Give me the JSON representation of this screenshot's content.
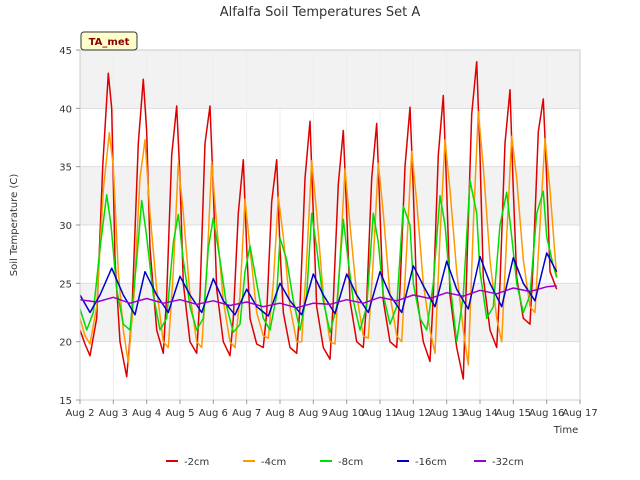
{
  "chart_data": {
    "type": "line",
    "title": "Alfalfa Soil Temperatures Set A",
    "xlabel": "Time",
    "ylabel": "Soil Temperature (C)",
    "badge": "TA_met",
    "ylim": [
      15,
      45
    ],
    "yticks": [
      15,
      20,
      25,
      30,
      35,
      40,
      45
    ],
    "xlim": [
      0,
      15
    ],
    "xticks": [
      {
        "x": 0,
        "label": "Aug 2"
      },
      {
        "x": 1,
        "label": "Aug 3"
      },
      {
        "x": 2,
        "label": "Aug 4"
      },
      {
        "x": 3,
        "label": "Aug 5"
      },
      {
        "x": 4,
        "label": "Aug 6"
      },
      {
        "x": 5,
        "label": "Aug 7"
      },
      {
        "x": 6,
        "label": "Aug 8"
      },
      {
        "x": 7,
        "label": "Aug 9"
      },
      {
        "x": 8,
        "label": "Aug 10"
      },
      {
        "x": 9,
        "label": "Aug 11"
      },
      {
        "x": 10,
        "label": "Aug 12"
      },
      {
        "x": 11,
        "label": "Aug 13"
      },
      {
        "x": 12,
        "label": "Aug 14"
      },
      {
        "x": 13,
        "label": "Aug 15"
      },
      {
        "x": 14,
        "label": "Aug 16"
      },
      {
        "x": 15,
        "label": "Aug 17"
      }
    ],
    "grid": true,
    "legend": "bottom",
    "series": [
      {
        "name": "-2cm",
        "color": "#dd0000",
        "x": [
          0.0,
          0.15,
          0.3,
          0.5,
          0.68,
          0.85,
          0.95,
          1.05,
          1.2,
          1.4,
          1.55,
          1.75,
          1.9,
          2.0,
          2.1,
          2.3,
          2.5,
          2.6,
          2.75,
          2.9,
          3.0,
          3.1,
          3.3,
          3.5,
          3.6,
          3.75,
          3.9,
          4.0,
          4.1,
          4.3,
          4.5,
          4.6,
          4.75,
          4.9,
          5.0,
          5.1,
          5.3,
          5.5,
          5.6,
          5.75,
          5.9,
          6.0,
          6.1,
          6.3,
          6.5,
          6.6,
          6.75,
          6.9,
          7.0,
          7.1,
          7.3,
          7.5,
          7.6,
          7.75,
          7.9,
          8.0,
          8.1,
          8.3,
          8.5,
          8.6,
          8.75,
          8.9,
          9.0,
          9.1,
          9.3,
          9.5,
          9.6,
          9.75,
          9.9,
          10.0,
          10.1,
          10.3,
          10.5,
          10.6,
          10.75,
          10.9,
          11.0,
          11.1,
          11.3,
          11.5,
          11.6,
          11.75,
          11.9,
          12.0,
          12.1,
          12.3,
          12.5,
          12.6,
          12.75,
          12.9,
          13.0,
          13.1,
          13.3,
          13.5,
          13.6,
          13.75,
          13.9,
          14.0,
          14.1,
          14.3
        ],
        "y": [
          21.0,
          19.8,
          18.8,
          22.0,
          35.0,
          43.0,
          40.0,
          27.0,
          20.0,
          17.0,
          22.0,
          37.0,
          42.5,
          38.0,
          28.0,
          21.0,
          19.0,
          24.0,
          36.0,
          40.2,
          34.0,
          25.0,
          20.0,
          19.0,
          24.0,
          37.0,
          40.2,
          33.0,
          24.5,
          20.0,
          18.8,
          22.0,
          31.0,
          35.6,
          28.0,
          22.0,
          19.8,
          19.5,
          22.5,
          32.0,
          35.6,
          28.0,
          22.5,
          19.5,
          19.0,
          23.0,
          34.0,
          38.9,
          31.0,
          23.0,
          19.5,
          18.5,
          23.5,
          33.5,
          38.1,
          31.0,
          23.5,
          20.0,
          19.5,
          23.5,
          34.0,
          38.7,
          31.0,
          23.5,
          20.0,
          19.5,
          24.5,
          35.0,
          40.1,
          33.0,
          24.0,
          20.0,
          18.3,
          24.0,
          36.0,
          41.1,
          33.0,
          24.0,
          19.5,
          16.8,
          26.0,
          39.5,
          44.0,
          36.0,
          25.5,
          21.0,
          19.5,
          25.0,
          37.0,
          41.6,
          33.0,
          25.5,
          22.0,
          21.5,
          27.0,
          38.0,
          40.8,
          34.0,
          26.0,
          24.5
        ]
      },
      {
        "name": "-4cm",
        "color": "#ff9900",
        "x": [
          0.0,
          0.15,
          0.3,
          0.5,
          0.7,
          0.88,
          1.0,
          1.15,
          1.3,
          1.45,
          1.62,
          1.8,
          1.95,
          2.1,
          2.3,
          2.5,
          2.65,
          2.8,
          2.95,
          3.1,
          3.3,
          3.5,
          3.65,
          3.8,
          3.95,
          4.1,
          4.3,
          4.5,
          4.65,
          4.8,
          4.95,
          5.1,
          5.3,
          5.5,
          5.65,
          5.8,
          5.95,
          6.1,
          6.3,
          6.5,
          6.65,
          6.8,
          6.95,
          7.1,
          7.3,
          7.5,
          7.65,
          7.8,
          7.95,
          8.1,
          8.3,
          8.5,
          8.65,
          8.8,
          8.95,
          9.1,
          9.3,
          9.5,
          9.65,
          9.8,
          9.95,
          10.1,
          10.3,
          10.5,
          10.65,
          10.8,
          10.95,
          11.1,
          11.3,
          11.5,
          11.65,
          11.8,
          11.95,
          12.1,
          12.3,
          12.5,
          12.65,
          12.8,
          12.95,
          13.1,
          13.3,
          13.5,
          13.65,
          13.8,
          13.95,
          14.1,
          14.3
        ],
        "y": [
          22.0,
          20.5,
          19.8,
          23.0,
          33.0,
          37.9,
          35.0,
          26.0,
          21.0,
          18.2,
          24.0,
          34.0,
          37.3,
          31.0,
          24.5,
          20.0,
          19.5,
          26.0,
          35.3,
          31.0,
          24.0,
          20.0,
          19.5,
          26.0,
          35.4,
          30.0,
          23.5,
          20.0,
          19.5,
          24.0,
          32.2,
          28.0,
          22.5,
          20.5,
          20.3,
          25.0,
          32.4,
          29.0,
          23.0,
          20.0,
          20.0,
          27.0,
          35.5,
          31.0,
          24.0,
          20.0,
          19.8,
          27.0,
          34.8,
          30.0,
          24.0,
          20.5,
          20.3,
          27.0,
          35.3,
          31.0,
          24.0,
          20.5,
          20.0,
          28.0,
          36.3,
          32.0,
          25.0,
          21.0,
          19.0,
          29.0,
          37.3,
          33.0,
          26.0,
          21.0,
          18.0,
          30.0,
          39.7,
          35.0,
          27.0,
          22.0,
          20.0,
          29.0,
          37.6,
          34.0,
          27.0,
          23.0,
          22.5,
          30.0,
          37.4,
          33.0,
          25.5
        ]
      },
      {
        "name": "-8cm",
        "color": "#00dd00",
        "x": [
          0.0,
          0.2,
          0.4,
          0.6,
          0.8,
          0.93,
          1.1,
          1.3,
          1.5,
          1.7,
          1.85,
          2.0,
          2.2,
          2.4,
          2.6,
          2.8,
          2.95,
          3.1,
          3.3,
          3.5,
          3.7,
          3.85,
          4.0,
          4.2,
          4.4,
          4.6,
          4.8,
          4.95,
          5.1,
          5.3,
          5.5,
          5.7,
          5.9,
          6.0,
          6.2,
          6.4,
          6.6,
          6.8,
          6.95,
          7.1,
          7.3,
          7.5,
          7.7,
          7.9,
          8.0,
          8.2,
          8.4,
          8.6,
          8.8,
          8.95,
          9.1,
          9.3,
          9.5,
          9.7,
          9.9,
          10.0,
          10.2,
          10.4,
          10.6,
          10.8,
          10.95,
          11.1,
          11.3,
          11.5,
          11.7,
          11.9,
          12.0,
          12.2,
          12.4,
          12.6,
          12.8,
          12.95,
          13.1,
          13.3,
          13.5,
          13.7,
          13.9,
          14.0,
          14.2,
          14.3
        ],
        "y": [
          22.8,
          21.0,
          22.5,
          28.0,
          32.6,
          30.0,
          24.5,
          21.5,
          21.0,
          27.0,
          32.1,
          29.0,
          24.0,
          21.0,
          22.0,
          28.5,
          30.9,
          27.0,
          23.0,
          21.0,
          22.0,
          28.0,
          30.6,
          27.0,
          23.0,
          20.8,
          21.5,
          26.0,
          28.2,
          25.0,
          22.0,
          21.0,
          24.0,
          28.9,
          27.0,
          23.5,
          21.0,
          24.0,
          31.0,
          28.0,
          23.5,
          20.8,
          23.0,
          30.5,
          28.0,
          23.5,
          21.0,
          23.0,
          31.0,
          28.5,
          24.0,
          21.5,
          23.0,
          31.6,
          30.0,
          25.0,
          22.0,
          21.0,
          25.0,
          32.5,
          30.0,
          25.0,
          20.0,
          24.0,
          33.8,
          31.0,
          26.0,
          22.0,
          23.0,
          30.0,
          32.8,
          29.0,
          25.0,
          22.5,
          24.0,
          31.0,
          32.9,
          29.0,
          26.5,
          25.5
        ]
      },
      {
        "name": "-16cm",
        "color": "#0000cc",
        "x": [
          0.0,
          0.3,
          0.6,
          0.95,
          1.3,
          1.65,
          1.95,
          2.3,
          2.65,
          3.0,
          3.3,
          3.65,
          4.0,
          4.3,
          4.65,
          5.0,
          5.3,
          5.65,
          6.0,
          6.3,
          6.65,
          7.0,
          7.3,
          7.65,
          8.0,
          8.3,
          8.65,
          9.0,
          9.3,
          9.65,
          10.0,
          10.3,
          10.65,
          11.0,
          11.3,
          11.65,
          12.0,
          12.3,
          12.65,
          13.0,
          13.3,
          13.65,
          14.0,
          14.3
        ],
        "y": [
          24.0,
          22.5,
          24.0,
          26.3,
          24.0,
          22.3,
          26.0,
          24.0,
          22.5,
          25.6,
          24.0,
          22.5,
          25.4,
          23.5,
          22.3,
          24.5,
          23.0,
          22.2,
          25.0,
          23.5,
          22.3,
          25.8,
          24.0,
          22.4,
          25.8,
          24.0,
          22.5,
          26.0,
          24.0,
          22.5,
          26.5,
          24.8,
          23.0,
          26.9,
          24.5,
          22.8,
          27.3,
          25.0,
          23.0,
          27.2,
          25.0,
          23.5,
          27.6,
          26.0
        ]
      },
      {
        "name": "-32cm",
        "color": "#9900cc",
        "x": [
          0.0,
          0.5,
          1.0,
          1.5,
          2.0,
          2.5,
          3.0,
          3.5,
          4.0,
          4.5,
          5.0,
          5.5,
          6.0,
          6.5,
          7.0,
          7.5,
          8.0,
          8.5,
          9.0,
          9.5,
          10.0,
          10.5,
          11.0,
          11.5,
          12.0,
          12.5,
          13.0,
          13.5,
          14.0,
          14.3
        ],
        "y": [
          23.6,
          23.4,
          23.8,
          23.3,
          23.7,
          23.3,
          23.6,
          23.2,
          23.5,
          23.1,
          23.4,
          23.0,
          23.3,
          22.9,
          23.3,
          23.2,
          23.6,
          23.3,
          23.8,
          23.5,
          24.0,
          23.7,
          24.2,
          23.9,
          24.4,
          24.1,
          24.6,
          24.3,
          24.7,
          24.8
        ]
      }
    ]
  }
}
